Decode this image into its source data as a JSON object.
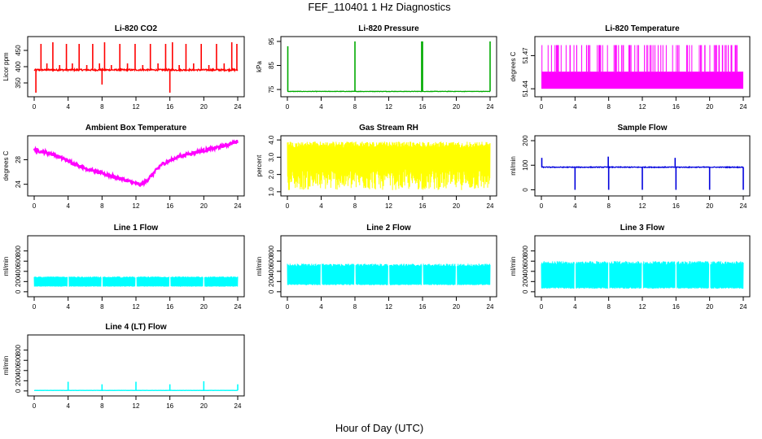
{
  "figure": {
    "title": "FEF_110401  1 Hz Diagnostics",
    "xlabel": "Hour of Day (UTC)"
  },
  "chart_data": [
    {
      "type": "line",
      "title": "Li-820 CO2",
      "ylabel": "Licor ppm",
      "color": "#ff0000",
      "xlim": [
        0,
        24
      ],
      "ylim": [
        315,
        485
      ],
      "xticks": [
        "0",
        "4",
        "8",
        "12",
        "16",
        "20",
        "24"
      ],
      "yticks": [
        350,
        400,
        450
      ],
      "ytick_labels": [
        "350",
        "400",
        "450"
      ],
      "series": [
        {
          "baseline": 390,
          "noise": 5,
          "spikes": [
            [
              0.2,
              320
            ],
            [
              0.8,
              470
            ],
            [
              1.5,
              410
            ],
            [
              2.2,
              475
            ],
            [
              3.0,
              405
            ],
            [
              3.8,
              470
            ],
            [
              4.5,
              410
            ],
            [
              5.3,
              470
            ],
            [
              6.2,
              405
            ],
            [
              6.9,
              470
            ],
            [
              7.7,
              410
            ],
            [
              8.0,
              345
            ],
            [
              8.3,
              475
            ],
            [
              9.1,
              405
            ],
            [
              10.1,
              470
            ],
            [
              11.0,
              410
            ],
            [
              11.9,
              470
            ],
            [
              12.8,
              405
            ],
            [
              13.7,
              470
            ],
            [
              14.6,
              410
            ],
            [
              15.5,
              470
            ],
            [
              16.0,
              320
            ],
            [
              16.3,
              475
            ],
            [
              17.1,
              405
            ],
            [
              17.9,
              470
            ],
            [
              18.8,
              410
            ],
            [
              19.7,
              470
            ],
            [
              20.6,
              405
            ],
            [
              21.5,
              470
            ],
            [
              22.4,
              410
            ],
            [
              23.3,
              475
            ],
            [
              23.9,
              470
            ]
          ]
        }
      ]
    },
    {
      "type": "line",
      "title": "Li-820 Pressure",
      "ylabel": "kPa",
      "color": "#00aa00",
      "xlim": [
        0,
        24
      ],
      "ylim": [
        73,
        96
      ],
      "xticks": [
        "0",
        "4",
        "8",
        "12",
        "16",
        "20",
        "24"
      ],
      "yticks": [
        75,
        85,
        95
      ],
      "ytick_labels": [
        "75",
        "85",
        "95"
      ],
      "series": [
        {
          "baseline": 74.2,
          "noise": 0.15,
          "spikes": [
            [
              0.05,
              93
            ],
            [
              8.0,
              95
            ],
            [
              15.9,
              95
            ],
            [
              16.0,
              95
            ],
            [
              24.0,
              95
            ]
          ]
        }
      ]
    },
    {
      "type": "line",
      "title": "Li-820 Temperature",
      "ylabel": "degrees C",
      "color": "#ff00ff",
      "xlim": [
        0,
        24
      ],
      "ylim": [
        51.435,
        51.485
      ],
      "xticks": [
        "0",
        "4",
        "8",
        "12",
        "16",
        "20",
        "24"
      ],
      "yticks": [
        51.44,
        51.47
      ],
      "ytick_labels": [
        "51.44",
        "51.47"
      ],
      "series": [
        {
          "low": 51.44,
          "mid": 51.4555,
          "high": 51.4795
        }
      ]
    },
    {
      "type": "line",
      "title": "Ambient Box Temperature",
      "ylabel": "degrees C",
      "color": "#ff00ff",
      "xlim": [
        0,
        24
      ],
      "ylim": [
        22.5,
        31.5
      ],
      "xticks": [
        "0",
        "4",
        "8",
        "12",
        "16",
        "20",
        "24"
      ],
      "yticks": [
        24,
        28
      ],
      "ytick_labels": [
        "24",
        "28"
      ],
      "series": [
        {
          "points": [
            [
              0,
              29.6
            ],
            [
              2,
              29.0
            ],
            [
              4,
              27.8
            ],
            [
              6,
              26.6
            ],
            [
              8,
              25.8
            ],
            [
              10,
              25.0
            ],
            [
              12.5,
              23.9
            ],
            [
              13.2,
              24.5
            ],
            [
              15,
              27.2
            ],
            [
              17,
              28.5
            ],
            [
              19,
              29.2
            ],
            [
              21,
              29.8
            ],
            [
              22.5,
              30.3
            ],
            [
              24,
              31.0
            ]
          ]
        }
      ]
    },
    {
      "type": "line",
      "title": "Gas Stream RH",
      "ylabel": "percent",
      "color": "#ffff00",
      "xlim": [
        0,
        24
      ],
      "ylim": [
        0.9,
        4.1
      ],
      "xticks": [
        "0",
        "4",
        "8",
        "12",
        "16",
        "20",
        "24"
      ],
      "yticks": [
        1.0,
        2.0,
        3.0,
        4.0
      ],
      "ytick_labels": [
        "1.0",
        "2.0",
        "3.0",
        "4.0"
      ],
      "series": [
        {
          "low": 1.1,
          "high": 3.9
        }
      ]
    },
    {
      "type": "line",
      "title": "Sample Flow",
      "ylabel": "ml/min",
      "color": "#0000dd",
      "xlim": [
        0,
        24
      ],
      "ylim": [
        -15,
        210
      ],
      "xticks": [
        "0",
        "4",
        "8",
        "12",
        "16",
        "20",
        "24"
      ],
      "yticks": [
        0,
        100,
        200
      ],
      "ytick_labels": [
        "0",
        "100",
        "200"
      ],
      "series": [
        {
          "baseline": 92,
          "noise": 3,
          "spikes": [
            [
              0.05,
              130
            ],
            [
              4.0,
              0
            ],
            [
              8.0,
              0
            ],
            [
              7.95,
              135
            ],
            [
              12.0,
              0
            ],
            [
              15.9,
              130
            ],
            [
              16.0,
              0
            ],
            [
              20.0,
              0
            ],
            [
              24.0,
              0
            ]
          ]
        }
      ]
    },
    {
      "type": "line",
      "title": "Line 1 Flow",
      "ylabel": "ml/min",
      "color": "#00ffff",
      "xlim": [
        0,
        24
      ],
      "ylim": [
        -50,
        1050
      ],
      "xticks": [
        "0",
        "4",
        "8",
        "12",
        "16",
        "20",
        "24"
      ],
      "yticks": [
        0,
        200,
        400,
        600,
        800
      ],
      "ytick_labels": [
        "0",
        "200",
        "400",
        "600",
        "800"
      ],
      "series": [
        {
          "low": 100,
          "high": 300,
          "gaps": [
            4,
            8,
            12,
            16,
            20
          ]
        }
      ]
    },
    {
      "type": "line",
      "title": "Line 2 Flow",
      "ylabel": "ml/min",
      "color": "#00ffff",
      "xlim": [
        0,
        24
      ],
      "ylim": [
        -50,
        1050
      ],
      "xticks": [
        "0",
        "4",
        "8",
        "12",
        "16",
        "20",
        "24"
      ],
      "yticks": [
        0,
        200,
        400,
        600,
        800
      ],
      "ytick_labels": [
        "0",
        "200",
        "400",
        "600",
        "800"
      ],
      "series": [
        {
          "low": 130,
          "high": 550,
          "gaps": [
            4,
            8,
            12,
            16,
            20
          ]
        }
      ]
    },
    {
      "type": "line",
      "title": "Line 3 Flow",
      "ylabel": "ml/min",
      "color": "#00ffff",
      "xlim": [
        0,
        24
      ],
      "ylim": [
        -50,
        1050
      ],
      "xticks": [
        "0",
        "4",
        "8",
        "12",
        "16",
        "20",
        "24"
      ],
      "yticks": [
        0,
        200,
        400,
        600,
        800
      ],
      "ytick_labels": [
        "0",
        "200",
        "400",
        "600",
        "800"
      ],
      "series": [
        {
          "low": 60,
          "high": 600,
          "gaps": [
            4,
            8,
            12,
            16,
            20
          ]
        }
      ]
    },
    {
      "type": "line",
      "title": "Line 4 (LT) Flow",
      "ylabel": "ml/min",
      "color": "#00ffff",
      "xlim": [
        0,
        24
      ],
      "ylim": [
        -50,
        1050
      ],
      "xticks": [
        "0",
        "4",
        "8",
        "12",
        "16",
        "20",
        "24"
      ],
      "yticks": [
        0,
        200,
        400,
        600,
        800
      ],
      "ytick_labels": [
        "0",
        "200",
        "400",
        "600",
        "800"
      ],
      "series": [
        {
          "baseline": 10,
          "noise": 3,
          "spikes": [
            [
              4.0,
              180
            ],
            [
              8.0,
              130
            ],
            [
              12.0,
              180
            ],
            [
              16.0,
              130
            ],
            [
              20.0,
              190
            ],
            [
              24.0,
              130
            ]
          ]
        }
      ]
    }
  ]
}
